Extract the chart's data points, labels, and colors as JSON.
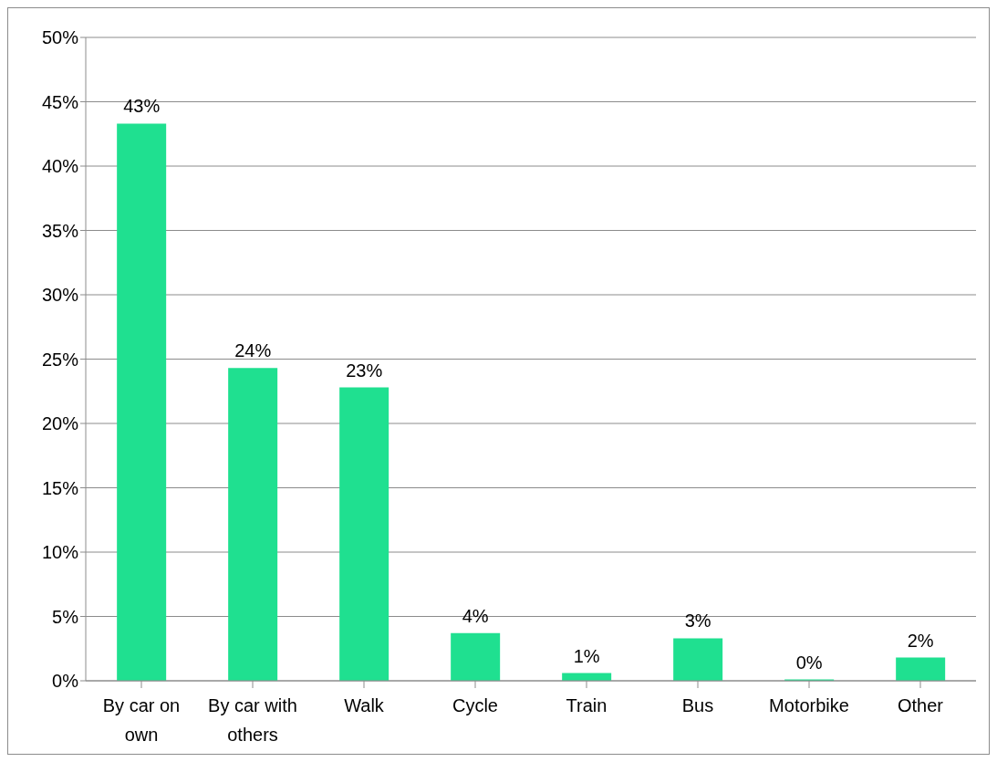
{
  "chart_data": {
    "type": "bar",
    "categories": [
      "By car on own",
      "By car with others",
      "Walk",
      "Cycle",
      "Train",
      "Bus",
      "Motorbike",
      "Other"
    ],
    "values": [
      43.3,
      24.3,
      22.8,
      3.7,
      0.6,
      3.3,
      0.1,
      1.8
    ],
    "value_labels": [
      "43%",
      "24%",
      "23%",
      "4%",
      "1%",
      "3%",
      "0%",
      "2%"
    ],
    "color": "#1fe090",
    "ylim": [
      0,
      50
    ],
    "yticks": [
      {
        "value": 0,
        "label": "0%"
      },
      {
        "value": 5,
        "label": "5%"
      },
      {
        "value": 10,
        "label": "10%"
      },
      {
        "value": 15,
        "label": "15%"
      },
      {
        "value": 20,
        "label": "20%"
      },
      {
        "value": 25,
        "label": "25%"
      },
      {
        "value": 30,
        "label": "30%"
      },
      {
        "value": 35,
        "label": "35%"
      },
      {
        "value": 40,
        "label": "40%"
      },
      {
        "value": 45,
        "label": "45%"
      },
      {
        "value": 50,
        "label": "50%"
      }
    ],
    "grid": "y",
    "legend": false
  }
}
